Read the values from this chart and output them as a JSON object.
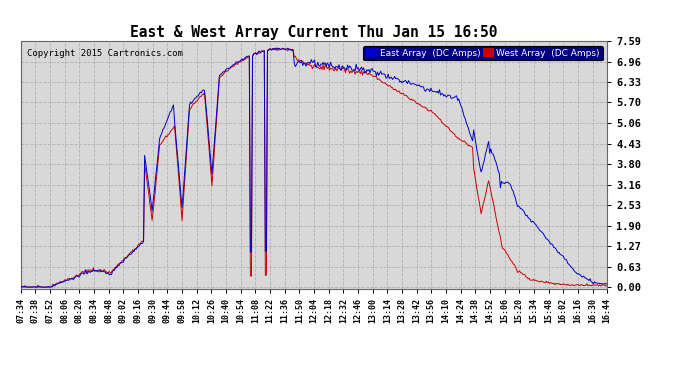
{
  "title": "East & West Array Current Thu Jan 15 16:50",
  "copyright": "Copyright 2015 Cartronics.com",
  "legend_east": "East Array  (DC Amps)",
  "legend_west": "West Array  (DC Amps)",
  "east_color": "#0000cc",
  "west_color": "#cc0000",
  "background_color": "#ffffff",
  "grid_color": "#aaaaaa",
  "plot_bg_color": "#d8d8d8",
  "yticks": [
    0.0,
    0.63,
    1.27,
    1.9,
    2.53,
    3.16,
    3.8,
    4.43,
    5.06,
    5.7,
    6.33,
    6.96,
    7.59
  ],
  "ylim": [
    -0.05,
    7.59
  ],
  "xtick_labels": [
    "07:34",
    "07:38",
    "07:52",
    "08:06",
    "08:20",
    "08:34",
    "08:48",
    "09:02",
    "09:16",
    "09:30",
    "09:44",
    "09:58",
    "10:12",
    "10:26",
    "10:40",
    "10:54",
    "11:08",
    "11:22",
    "11:36",
    "11:50",
    "12:04",
    "12:18",
    "12:32",
    "12:46",
    "13:00",
    "13:14",
    "13:28",
    "13:42",
    "13:56",
    "14:10",
    "14:24",
    "14:38",
    "14:52",
    "15:06",
    "15:20",
    "15:34",
    "15:48",
    "16:02",
    "16:16",
    "16:30",
    "16:44"
  ]
}
